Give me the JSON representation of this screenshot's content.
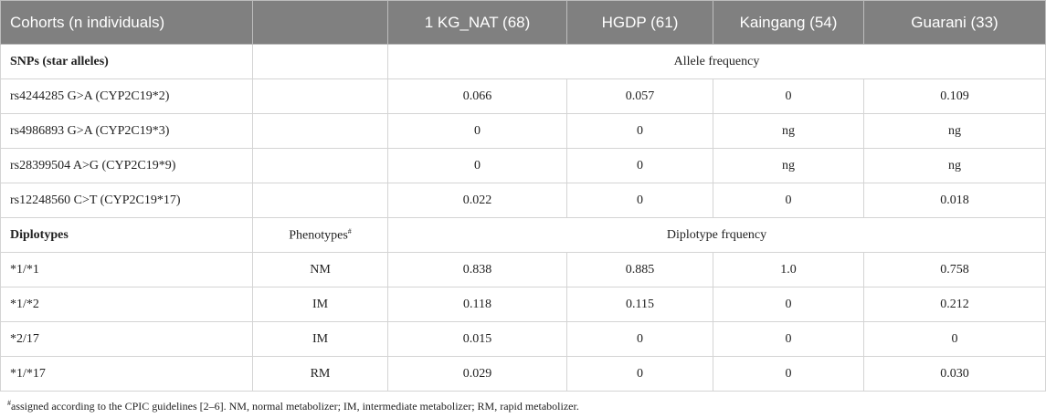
{
  "table": {
    "header": [
      "Cohorts (n individuals)",
      "1 KG_NAT (68)",
      "HGDP (61)",
      "Kaingang (54)",
      "Guarani (33)"
    ],
    "sections": [
      {
        "title": "SNPs (star alleles)",
        "span_title": "Allele frequency",
        "rows": [
          {
            "label": "rs4244285 G>A (CYP2C19*2)",
            "values": [
              "0.066",
              "0.057",
              "0",
              "0.109"
            ]
          },
          {
            "label": "rs4986893 G>A (CYP2C19*3)",
            "values": [
              "0",
              "0",
              "ng",
              "ng"
            ]
          },
          {
            "label": "rs28399504 A>G (CYP2C19*9)",
            "values": [
              "0",
              "0",
              "ng",
              "ng"
            ]
          },
          {
            "label": "rs12248560 C>T (CYP2C19*17)",
            "values": [
              "0.022",
              "0",
              "0",
              "0.018"
            ]
          }
        ]
      },
      {
        "title": "Diplotypes",
        "column2_title": "Phenotypes",
        "column2_mark": "#",
        "span_title": "Diplotype frquency",
        "rows": [
          {
            "label": "*1/*1",
            "phenotype": "NM",
            "values": [
              "0.838",
              "0.885",
              "1.0",
              "0.758"
            ]
          },
          {
            "label": "*1/*2",
            "phenotype": "IM",
            "values": [
              "0.118",
              "0.115",
              "0",
              "0.212"
            ]
          },
          {
            "label": "*2/17",
            "phenotype": "IM",
            "values": [
              "0.015",
              "0",
              "0",
              "0"
            ]
          },
          {
            "label": "*1/*17",
            "phenotype": "RM",
            "values": [
              "0.029",
              "0",
              "0",
              "0.030"
            ]
          }
        ]
      }
    ]
  },
  "footnote": {
    "marker": "#",
    "text": "assigned according to the CPIC guidelines [2–6]. NM, normal metabolizer; IM, intermediate metabolizer; RM, rapid metabolizer."
  }
}
